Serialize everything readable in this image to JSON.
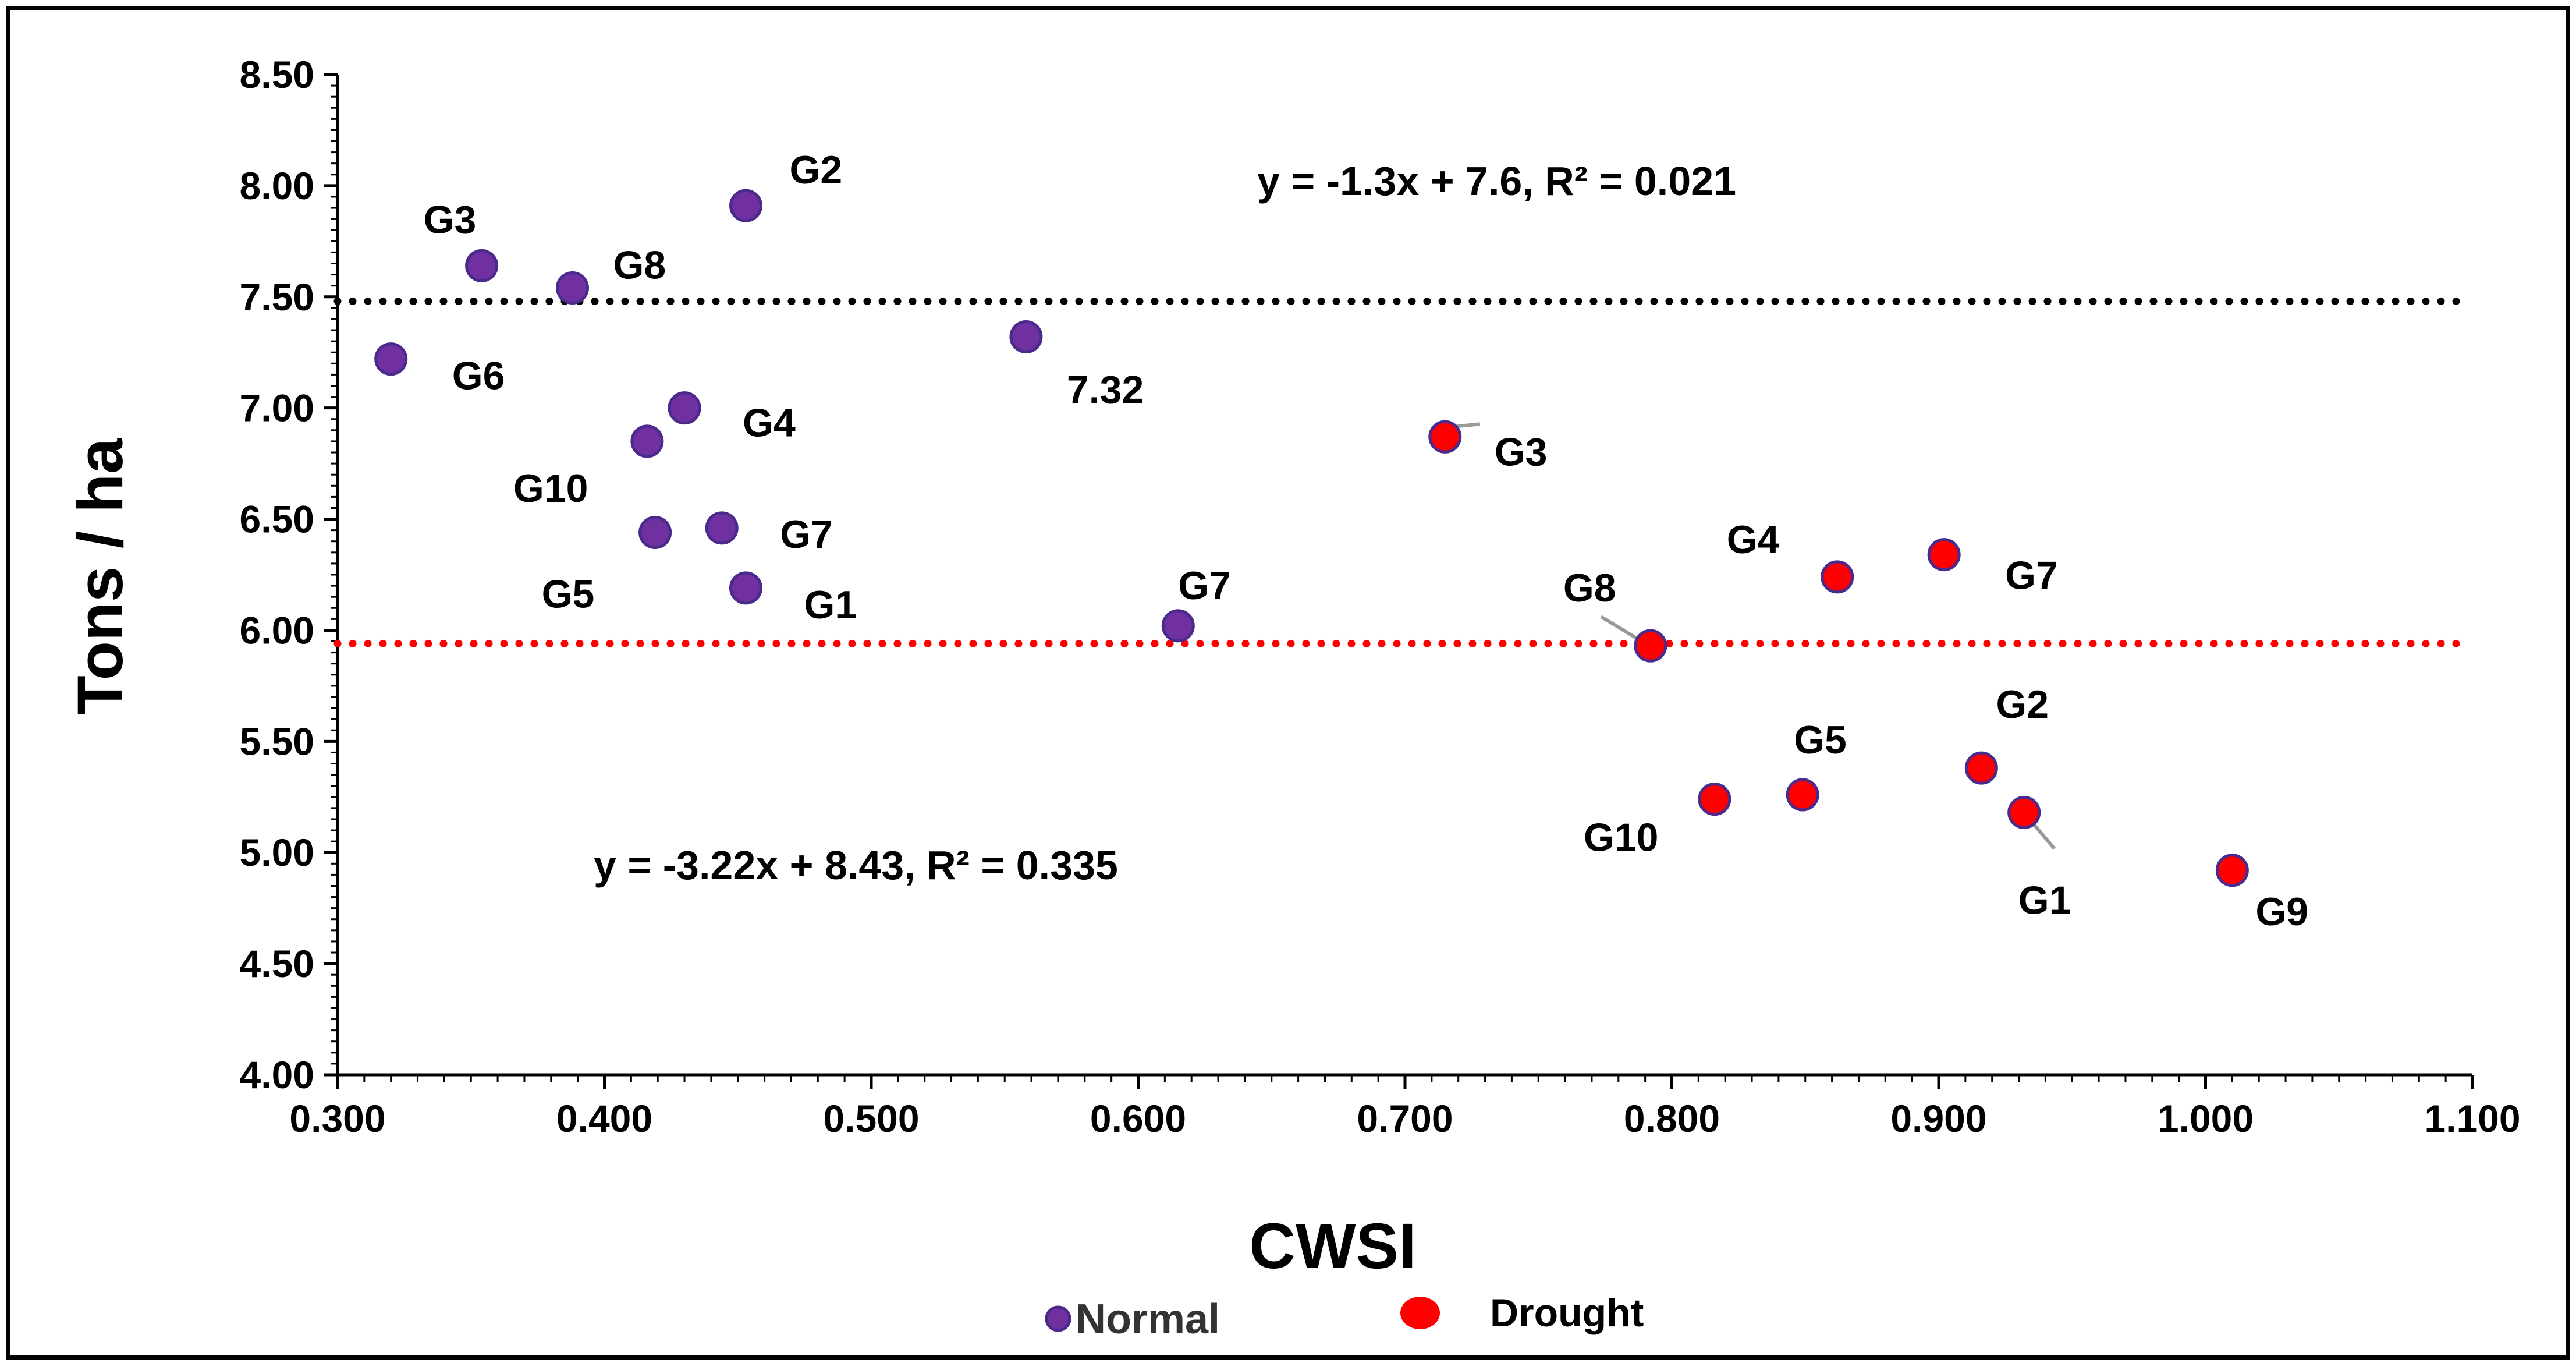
{
  "chart_data": {
    "type": "scatter",
    "title": "",
    "xlabel": "CWSI",
    "ylabel": "Tons / ha",
    "xlim": [
      0.3,
      1.1
    ],
    "ylim": [
      4.0,
      8.5
    ],
    "x_ticks": [
      "0.300",
      "0.400",
      "0.500",
      "0.600",
      "0.700",
      "0.800",
      "0.900",
      "1.000",
      "1.100"
    ],
    "y_ticks": [
      "4.00",
      "4.50",
      "5.00",
      "5.50",
      "6.00",
      "6.50",
      "7.00",
      "7.50",
      "8.00",
      "8.50"
    ],
    "grid": false,
    "legend_position": "bottom-center",
    "series": [
      {
        "name": "Normal",
        "color": "#7030a0",
        "points": [
          {
            "label": "G2",
            "x": 0.453,
            "y": 7.91
          },
          {
            "label": "G3",
            "x": 0.354,
            "y": 7.64
          },
          {
            "label": "G8",
            "x": 0.388,
            "y": 7.54
          },
          {
            "label": "G6",
            "x": 0.32,
            "y": 7.22
          },
          {
            "label": "7.32",
            "x": 0.558,
            "y": 7.32
          },
          {
            "label": "G4",
            "x": 0.43,
            "y": 7.0
          },
          {
            "label": "G10",
            "x": 0.416,
            "y": 6.85
          },
          {
            "label": "G7",
            "x": 0.444,
            "y": 6.46
          },
          {
            "label": "G5",
            "x": 0.419,
            "y": 6.44
          },
          {
            "label": "G1",
            "x": 0.453,
            "y": 6.19
          },
          {
            "label": "G7",
            "x": 0.615,
            "y": 6.02
          }
        ]
      },
      {
        "name": "Drought",
        "color": "#ff0000",
        "points": [
          {
            "label": "G3",
            "x": 0.715,
            "y": 6.87
          },
          {
            "label": "G4",
            "x": 0.862,
            "y": 6.24
          },
          {
            "label": "G7",
            "x": 0.902,
            "y": 6.34
          },
          {
            "label": "G8",
            "x": 0.792,
            "y": 5.93
          },
          {
            "label": "G2",
            "x": 0.916,
            "y": 5.38
          },
          {
            "label": "G5",
            "x": 0.849,
            "y": 5.26
          },
          {
            "label": "G10",
            "x": 0.816,
            "y": 5.24
          },
          {
            "label": "G1",
            "x": 0.932,
            "y": 5.18
          },
          {
            "label": "G9",
            "x": 1.01,
            "y": 4.92
          }
        ]
      }
    ],
    "mean_lines": [
      {
        "series": "Normal",
        "y": 7.48,
        "color": "#000000",
        "style": "dotted"
      },
      {
        "series": "Drought",
        "y": 5.94,
        "color": "#ff0000",
        "style": "dotted"
      }
    ],
    "annotations": [
      {
        "text": "y = -1.3x + 7.6, R² = 0.021"
      },
      {
        "text": "y = -3.22x + 8.43, R² = 0.335"
      }
    ]
  }
}
